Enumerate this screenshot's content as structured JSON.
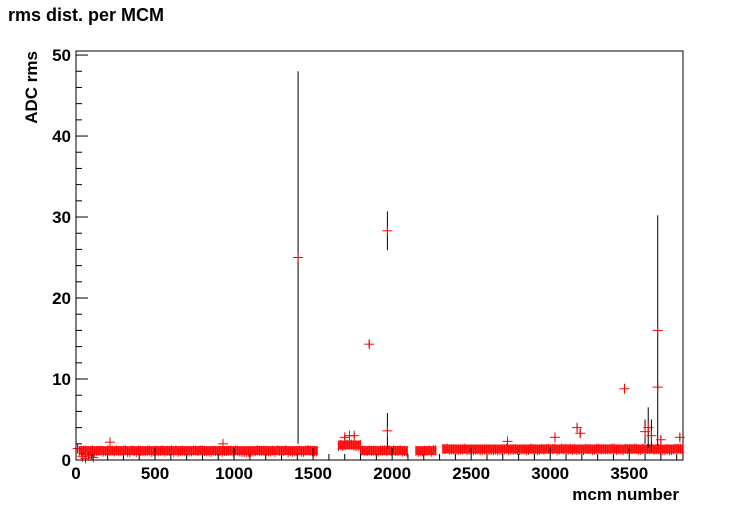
{
  "chart_data": {
    "type": "scatter",
    "title": "rms dist. per MCM",
    "xlabel": "mcm number",
    "ylabel": "ADC rms",
    "xlim": [
      0,
      3840
    ],
    "ylim": [
      0,
      50.5
    ],
    "xticks": [
      0,
      500,
      1000,
      1500,
      2000,
      2500,
      3000,
      3500
    ],
    "yticks": [
      0,
      10,
      20,
      30,
      40,
      50
    ],
    "grid": false,
    "legend": "none",
    "marker": "+",
    "marker_color": "#ff0000",
    "errorbar_color": "#000000",
    "baseline_segments": [
      {
        "x_start": 20,
        "x_end": 1530,
        "y": 1.1
      },
      {
        "x_start": 1660,
        "x_end": 1800,
        "y": 1.8
      },
      {
        "x_start": 1800,
        "x_end": 2100,
        "y": 1.1
      },
      {
        "x_start": 2150,
        "x_end": 2280,
        "y": 1.1
      },
      {
        "x_start": 2320,
        "x_end": 3840,
        "y": 1.3
      }
    ],
    "points": [
      {
        "x": 10,
        "y": 1.4,
        "err": 0.5
      },
      {
        "x": 40,
        "y": 0.4,
        "err": 0.3
      },
      {
        "x": 60,
        "y": 0.2,
        "err": 0.3
      },
      {
        "x": 80,
        "y": 0.5,
        "err": 0.3
      },
      {
        "x": 110,
        "y": 0.3,
        "err": 0.3
      },
      {
        "x": 215,
        "y": 2.2,
        "err": 0.3
      },
      {
        "x": 930,
        "y": 2.0,
        "err": 0.4
      },
      {
        "x": 1405,
        "y": 25.0,
        "err": 23.0
      },
      {
        "x": 1855,
        "y": 14.3,
        "err": 0.4
      },
      {
        "x": 1970,
        "y": 28.3,
        "err": 2.4
      },
      {
        "x": 1970,
        "y": 3.6,
        "err": 2.2
      },
      {
        "x": 1700,
        "y": 2.8,
        "err": 0.3
      },
      {
        "x": 1730,
        "y": 3.0,
        "err": 0.3
      },
      {
        "x": 1760,
        "y": 3.0,
        "err": 0.3
      },
      {
        "x": 2730,
        "y": 2.3,
        "err": 0.3
      },
      {
        "x": 3030,
        "y": 2.8,
        "err": 0.3
      },
      {
        "x": 3170,
        "y": 4.0,
        "err": 0.5
      },
      {
        "x": 3190,
        "y": 3.3,
        "err": 0.5
      },
      {
        "x": 3470,
        "y": 8.8,
        "err": 0.3
      },
      {
        "x": 3600,
        "y": 3.5,
        "err": 1.5
      },
      {
        "x": 3620,
        "y": 4.0,
        "err": 2.5
      },
      {
        "x": 3640,
        "y": 3.0,
        "err": 2.0
      },
      {
        "x": 3680,
        "y": 16.0,
        "err": 14.2
      },
      {
        "x": 3680,
        "y": 9.0,
        "err": 0.5
      },
      {
        "x": 3700,
        "y": 2.5,
        "err": 0.5
      },
      {
        "x": 3820,
        "y": 2.8,
        "err": 0.4
      }
    ]
  }
}
